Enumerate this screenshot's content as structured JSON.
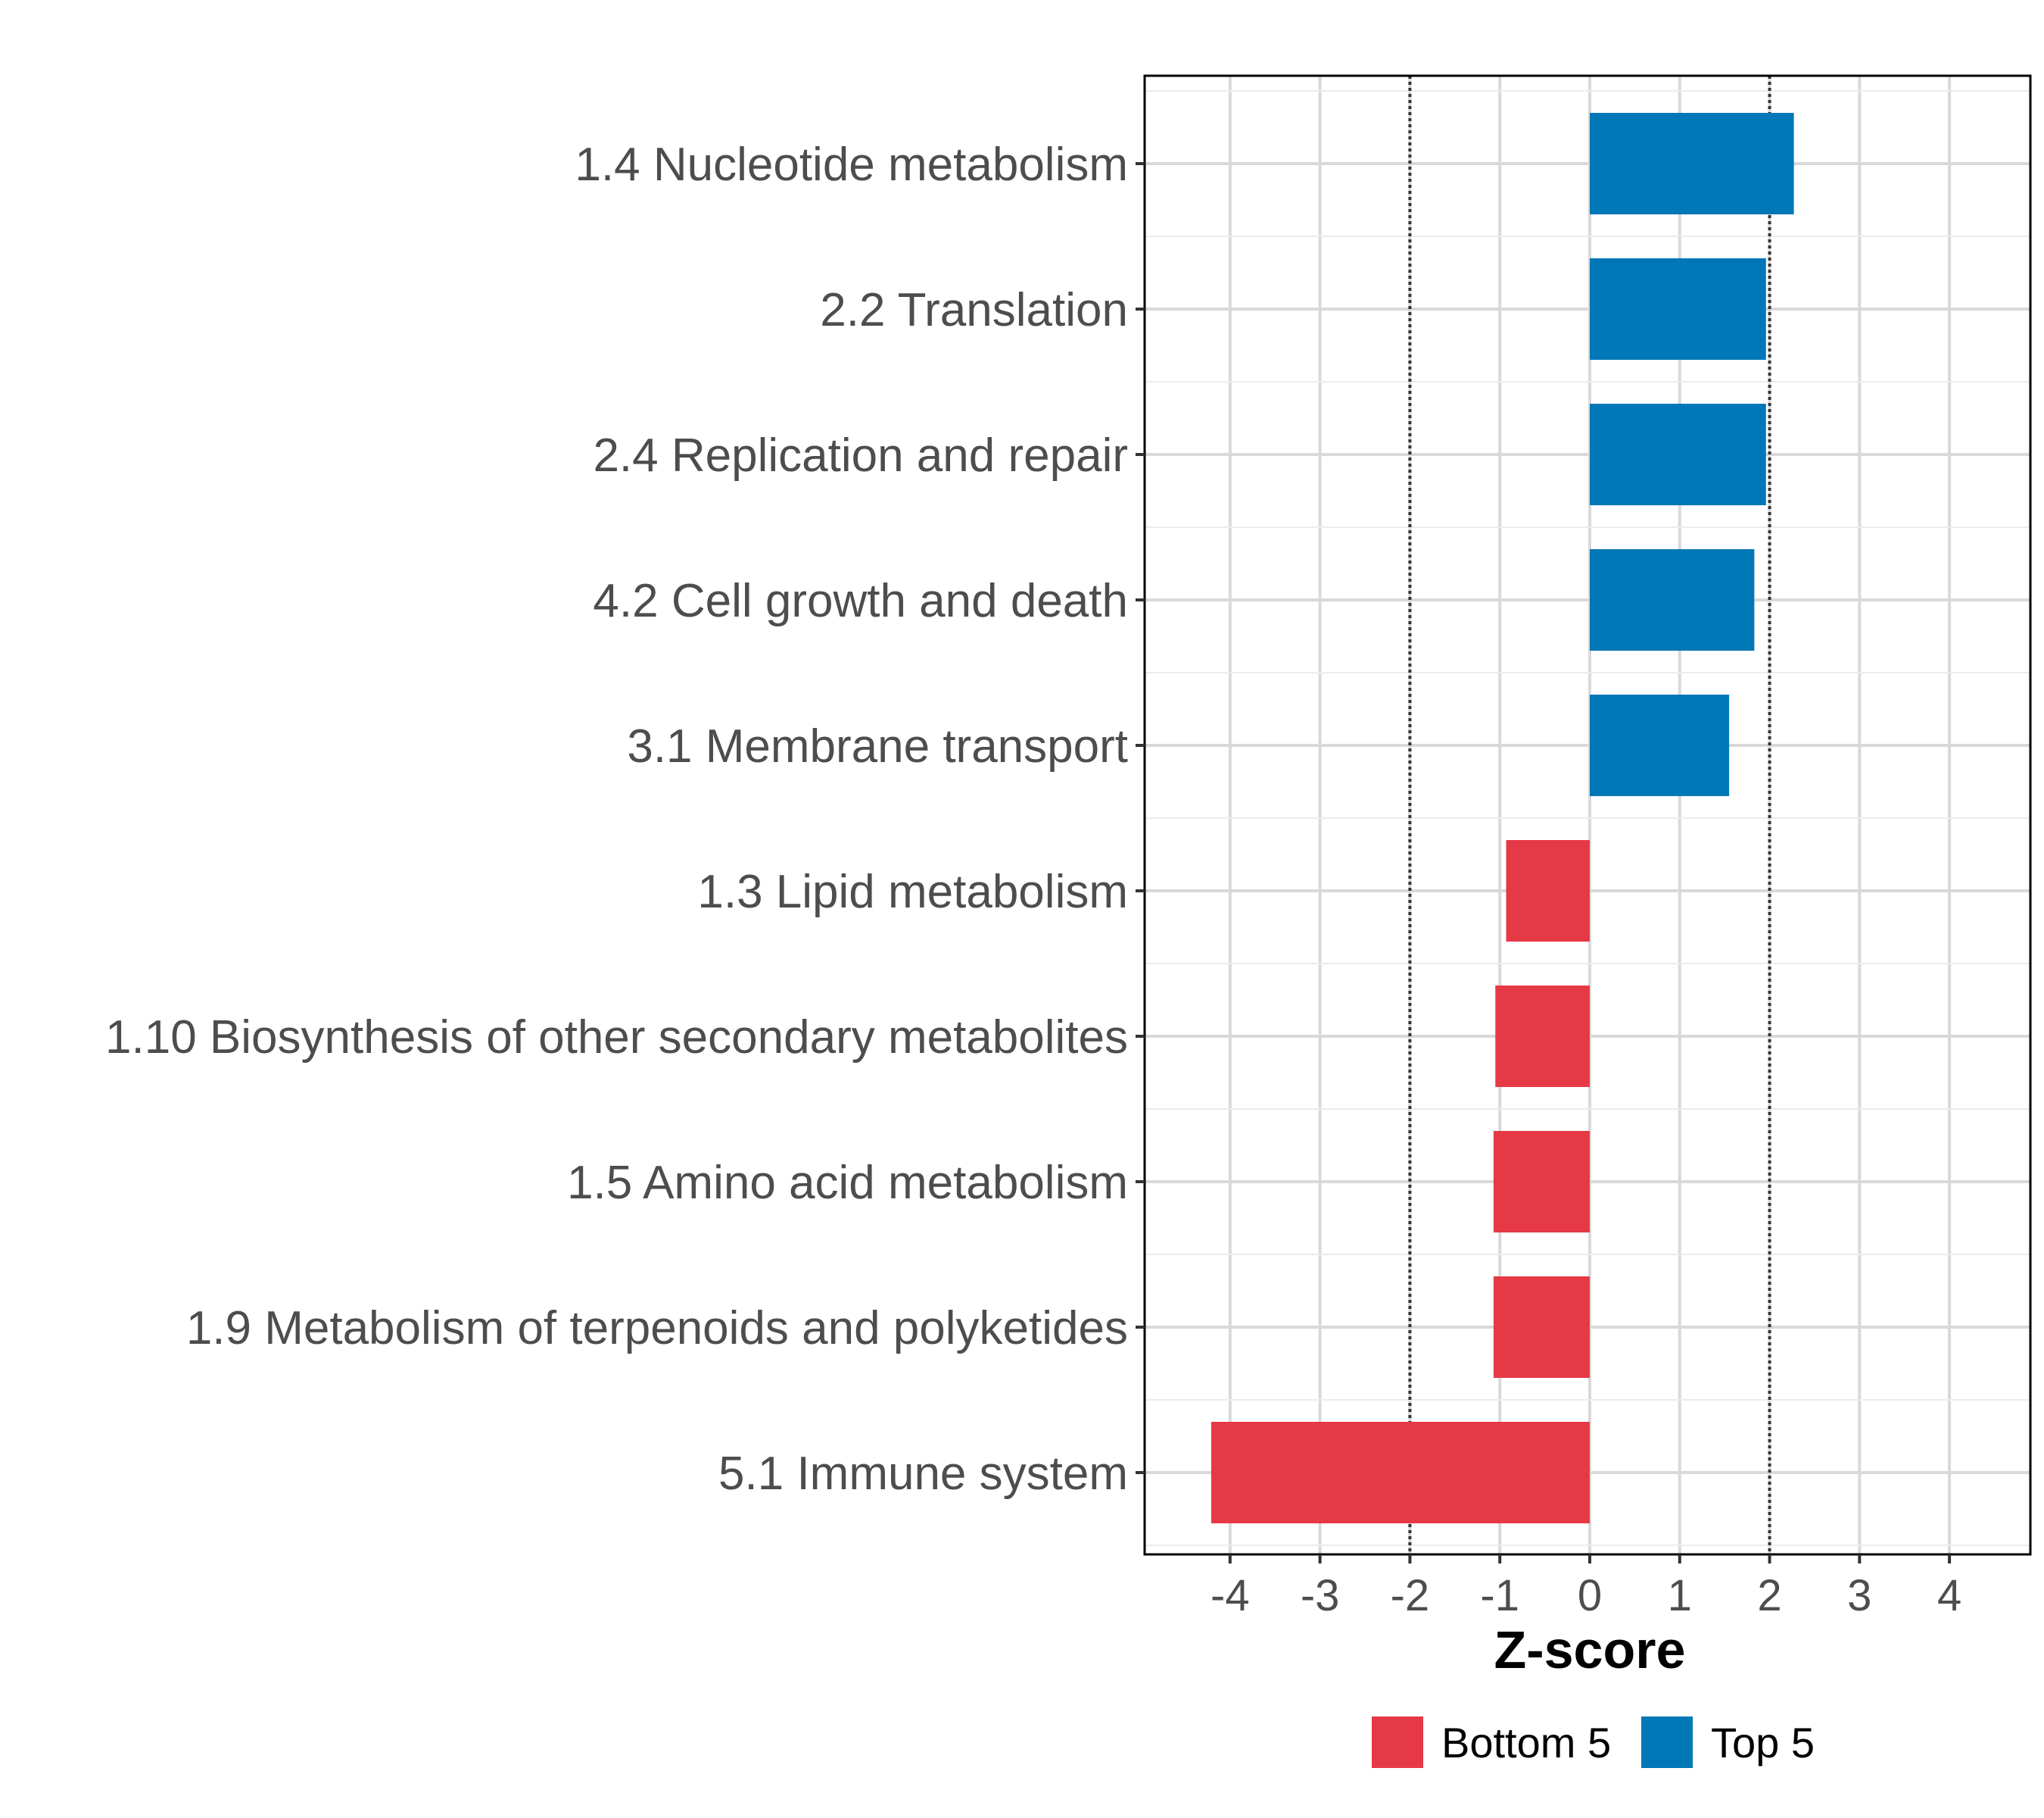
{
  "chart_data": {
    "type": "bar",
    "orientation": "horizontal",
    "title": "",
    "xlabel": "Z-score",
    "ylabel": "",
    "xlim": [
      -4.95,
      4.9
    ],
    "xticks": [
      -4,
      -3,
      -2,
      -1,
      0,
      1,
      2,
      3,
      4
    ],
    "xtick_labels": [
      "-4",
      "-3",
      "-2",
      "-1",
      "0",
      "1",
      "2",
      "3",
      "4"
    ],
    "reference_lines": [
      -2,
      2
    ],
    "grid": true,
    "categories": [
      "1.4 Nucleotide metabolism",
      "2.2 Translation",
      "2.4 Replication and repair",
      "4.2 Cell growth and death",
      "3.1 Membrane transport",
      "1.3 Lipid metabolism",
      "1.10 Biosynthesis of other secondary metabolites",
      "1.5 Amino acid metabolism",
      "1.9 Metabolism of terpenoids and polyketides",
      "5.1 Immune system"
    ],
    "values": [
      2.27,
      1.96,
      1.96,
      1.83,
      1.55,
      -0.93,
      -1.05,
      -1.07,
      -1.07,
      -4.21
    ],
    "groups": [
      "Top 5",
      "Top 5",
      "Top 5",
      "Top 5",
      "Top 5",
      "Bottom 5",
      "Bottom 5",
      "Bottom 5",
      "Bottom 5",
      "Bottom 5"
    ],
    "legend": {
      "position": "bottom",
      "entries": [
        {
          "label": "Bottom 5",
          "color": "#e63946"
        },
        {
          "label": "Top 5",
          "color": "#0077b6"
        }
      ]
    }
  }
}
